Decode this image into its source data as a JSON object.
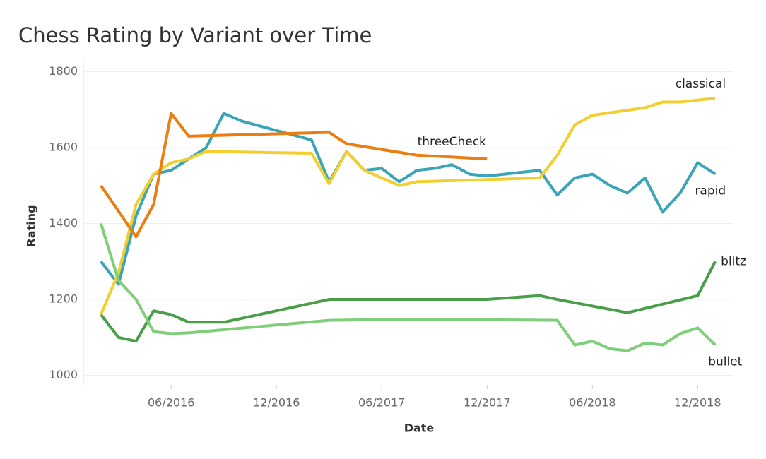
{
  "chart_data": {
    "type": "line",
    "title": "Chess Rating by Variant over Time",
    "x_label": "Date",
    "y_label": "Rating",
    "xlim": [
      "2016-01",
      "2019-02"
    ],
    "xticks": [
      {
        "value": "2016-06",
        "label": "06/2016"
      },
      {
        "value": "2016-12",
        "label": "12/2016"
      },
      {
        "value": "2017-06",
        "label": "06/2017"
      },
      {
        "value": "2017-12",
        "label": "12/2017"
      },
      {
        "value": "2018-06",
        "label": "06/2018"
      },
      {
        "value": "2018-12",
        "label": "12/2018"
      }
    ],
    "ylim": [
      975,
      1825
    ],
    "yticks": [
      1000,
      1200,
      1400,
      1600,
      1800
    ],
    "grid": true,
    "series": [
      {
        "name": "rapid",
        "color": "#3ba5b8",
        "x": [
          "2016-02",
          "2016-03",
          "2016-04",
          "2016-05",
          "2016-06",
          "2016-07",
          "2016-08",
          "2016-09",
          "2016-10",
          "2017-02",
          "2017-03",
          "2017-04",
          "2017-05",
          "2017-06",
          "2017-07",
          "2017-08",
          "2017-09",
          "2017-10",
          "2017-11",
          "2017-12",
          "2018-01",
          "2018-02",
          "2018-03",
          "2018-04",
          "2018-05",
          "2018-06",
          "2018-07",
          "2018-08",
          "2018-09",
          "2018-10",
          "2018-11",
          "2018-12",
          "2019-01"
        ],
        "values": [
          1300,
          1240,
          1420,
          1530,
          1540,
          1570,
          1600,
          1690,
          1670,
          1620,
          1510,
          1590,
          1540,
          1545,
          1510,
          1540,
          1545,
          1555,
          1530,
          1525,
          1530,
          1535,
          1540,
          1475,
          1520,
          1530,
          1500,
          1480,
          1520,
          1430,
          1480,
          1560,
          1530
        ]
      },
      {
        "name": "classical",
        "color": "#f2cf2e",
        "x": [
          "2016-02",
          "2016-03",
          "2016-04",
          "2016-05",
          "2016-06",
          "2016-07",
          "2016-08",
          "2017-02",
          "2017-03",
          "2017-04",
          "2017-05",
          "2017-06",
          "2017-07",
          "2017-08",
          "2018-03",
          "2018-04",
          "2018-05",
          "2018-06",
          "2018-09",
          "2018-10",
          "2018-11",
          "2018-12",
          "2019-01"
        ],
        "values": [
          1160,
          1270,
          1450,
          1530,
          1560,
          1570,
          1590,
          1585,
          1505,
          1590,
          1540,
          1520,
          1500,
          1510,
          1520,
          1580,
          1660,
          1685,
          1705,
          1720,
          1720,
          1725,
          1730
        ]
      },
      {
        "name": "threeCheck",
        "color": "#ec7d10",
        "x": [
          "2016-02",
          "2016-04",
          "2016-05",
          "2016-06",
          "2016-07",
          "2017-03",
          "2017-04",
          "2017-08",
          "2017-12"
        ],
        "values": [
          1500,
          1365,
          1450,
          1690,
          1630,
          1640,
          1610,
          1580,
          1570
        ]
      },
      {
        "name": "blitz",
        "color": "#499f48",
        "x": [
          "2016-02",
          "2016-03",
          "2016-04",
          "2016-05",
          "2016-06",
          "2016-07",
          "2016-09",
          "2017-03",
          "2017-12",
          "2018-03",
          "2018-04",
          "2018-08",
          "2018-12",
          "2019-01"
        ],
        "values": [
          1160,
          1100,
          1090,
          1170,
          1160,
          1140,
          1140,
          1200,
          1200,
          1210,
          1200,
          1165,
          1210,
          1300
        ]
      },
      {
        "name": "bullet",
        "color": "#7fcf7a",
        "x": [
          "2016-02",
          "2016-03",
          "2016-04",
          "2016-05",
          "2016-06",
          "2016-07",
          "2017-03",
          "2017-08",
          "2018-04",
          "2018-05",
          "2018-06",
          "2018-07",
          "2018-08",
          "2018-09",
          "2018-10",
          "2018-11",
          "2018-12",
          "2019-01"
        ],
        "values": [
          1400,
          1250,
          1200,
          1115,
          1110,
          1112,
          1145,
          1148,
          1145,
          1080,
          1090,
          1070,
          1065,
          1085,
          1080,
          1110,
          1125,
          1080
        ]
      }
    ]
  }
}
